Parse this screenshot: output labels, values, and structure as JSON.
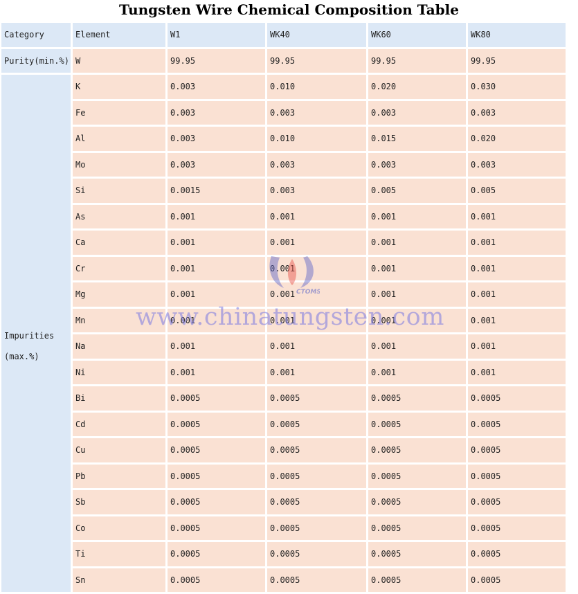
{
  "title": "Tungsten Wire Chemical Composition Table",
  "header": [
    "Category",
    "Element",
    "W1",
    "WK40",
    "WK60",
    "WK80"
  ],
  "purity": {
    "category": "Purity(min.%)",
    "element": "W",
    "values": [
      "99.95",
      "99.95",
      "99.95",
      "99.95"
    ]
  },
  "impurities": {
    "category_line1": "Impurities",
    "category_line2": "(max.%)",
    "rows": [
      {
        "element": "K",
        "values": [
          "0.003",
          "0.010",
          "0.020",
          "0.030"
        ]
      },
      {
        "element": "Fe",
        "values": [
          "0.003",
          "0.003",
          "0.003",
          "0.003"
        ]
      },
      {
        "element": "Al",
        "values": [
          "0.003",
          "0.010",
          "0.015",
          "0.020"
        ]
      },
      {
        "element": "Mo",
        "values": [
          "0.003",
          "0.003",
          "0.003",
          "0.003"
        ]
      },
      {
        "element": "Si",
        "values": [
          "0.0015",
          "0.003",
          "0.005",
          "0.005"
        ]
      },
      {
        "element": "As",
        "values": [
          "0.001",
          "0.001",
          "0.001",
          "0.001"
        ]
      },
      {
        "element": "Ca",
        "values": [
          "0.001",
          "0.001",
          "0.001",
          "0.001"
        ]
      },
      {
        "element": "Cr",
        "values": [
          "0.001",
          "0.001",
          "0.001",
          "0.001"
        ]
      },
      {
        "element": "Mg",
        "values": [
          "0.001",
          "0.001",
          "0.001",
          "0.001"
        ]
      },
      {
        "element": "Mn",
        "values": [
          "0.001",
          "0.001",
          "0.001",
          "0.001"
        ]
      },
      {
        "element": "Na",
        "values": [
          "0.001",
          "0.001",
          "0.001",
          "0.001"
        ]
      },
      {
        "element": "Ni",
        "values": [
          "0.001",
          "0.001",
          "0.001",
          "0.001"
        ]
      },
      {
        "element": "Bi",
        "values": [
          "0.0005",
          "0.0005",
          "0.0005",
          "0.0005"
        ]
      },
      {
        "element": "Cd",
        "values": [
          "0.0005",
          "0.0005",
          "0.0005",
          "0.0005"
        ]
      },
      {
        "element": "Cu",
        "values": [
          "0.0005",
          "0.0005",
          "0.0005",
          "0.0005"
        ]
      },
      {
        "element": "Pb",
        "values": [
          "0.0005",
          "0.0005",
          "0.0005",
          "0.0005"
        ]
      },
      {
        "element": "Sb",
        "values": [
          "0.0005",
          "0.0005",
          "0.0005",
          "0.0005"
        ]
      },
      {
        "element": "Co",
        "values": [
          "0.0005",
          "0.0005",
          "0.0005",
          "0.0005"
        ]
      },
      {
        "element": "Ti",
        "values": [
          "0.0005",
          "0.0005",
          "0.0005",
          "0.0005"
        ]
      },
      {
        "element": "Sn",
        "values": [
          "0.0005",
          "0.0005",
          "0.0005",
          "0.0005"
        ]
      }
    ]
  },
  "watermark": "www.chinatungsten.com",
  "logo_text": "CTOMS",
  "colors": {
    "header_bg": "#dce8f6",
    "cell_bg": "#fae1d3",
    "watermark": "#7878e1"
  }
}
